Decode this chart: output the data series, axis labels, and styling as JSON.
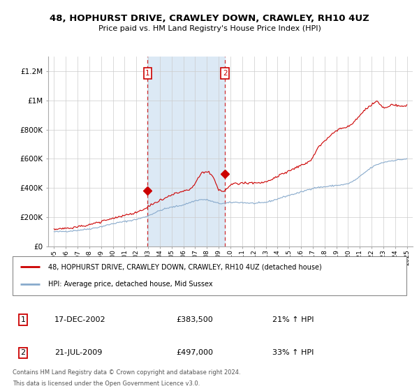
{
  "title": "48, HOPHURST DRIVE, CRAWLEY DOWN, CRAWLEY, RH10 4UZ",
  "subtitle": "Price paid vs. HM Land Registry's House Price Index (HPI)",
  "ylim": [
    0,
    1300000
  ],
  "yticks": [
    0,
    200000,
    400000,
    600000,
    800000,
    1000000,
    1200000
  ],
  "ytick_labels": [
    "£0",
    "£200K",
    "£400K",
    "£600K",
    "£800K",
    "£1M",
    "£1.2M"
  ],
  "xlim_start": 1994.5,
  "xlim_end": 2025.5,
  "xticks": [
    1995,
    1996,
    1997,
    1998,
    1999,
    2000,
    2001,
    2002,
    2003,
    2004,
    2005,
    2006,
    2007,
    2008,
    2009,
    2010,
    2011,
    2012,
    2013,
    2014,
    2015,
    2016,
    2017,
    2018,
    2019,
    2020,
    2021,
    2022,
    2023,
    2024,
    2025
  ],
  "grid_color": "#cccccc",
  "shaded_region_color": "#dce9f5",
  "red_line_color": "#cc0000",
  "blue_line_color": "#88aacc",
  "sale1_x": 2002.96,
  "sale1_y": 383500,
  "sale2_x": 2009.54,
  "sale2_y": 497000,
  "sale1_date": "17-DEC-2002",
  "sale1_price": "£383,500",
  "sale1_hpi": "21% ↑ HPI",
  "sale2_date": "21-JUL-2009",
  "sale2_price": "£497,000",
  "sale2_hpi": "33% ↑ HPI",
  "legend_line1": "48, HOPHURST DRIVE, CRAWLEY DOWN, CRAWLEY, RH10 4UZ (detached house)",
  "legend_line2": "HPI: Average price, detached house, Mid Sussex",
  "footer1": "Contains HM Land Registry data © Crown copyright and database right 2024.",
  "footer2": "This data is licensed under the Open Government Licence v3.0."
}
